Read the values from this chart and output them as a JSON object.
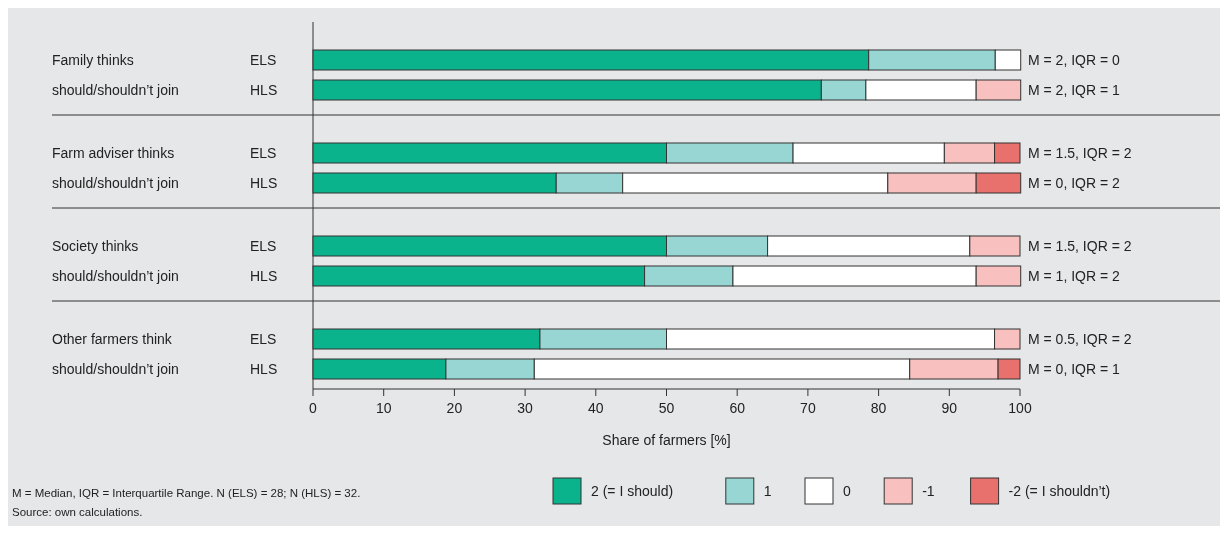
{
  "chart_data": {
    "type": "bar",
    "orientation": "horizontal",
    "stacked": true,
    "xlabel": "Share of farmers [%]",
    "categories": [
      "ELS",
      "HLS",
      "ELS",
      "HLS",
      "ELS",
      "HLS",
      "ELS",
      "HLS"
    ],
    "series": [
      {
        "name": "2 (= I should)",
        "color": "#0bb38d",
        "values": [
          78.6,
          71.9,
          50.0,
          34.4,
          50.0,
          46.9,
          32.1,
          18.8
        ]
      },
      {
        "name": "1",
        "color": "#98d6d3",
        "values": [
          17.9,
          6.3,
          17.9,
          9.4,
          14.3,
          12.5,
          17.9,
          12.5
        ]
      },
      {
        "name": "0",
        "color": "#ffffff",
        "values": [
          3.6,
          15.6,
          21.4,
          37.5,
          28.6,
          34.4,
          46.4,
          53.1
        ]
      },
      {
        "name": "-1",
        "color": "#f8c0bf",
        "values": [
          0,
          6.3,
          7.1,
          12.5,
          7.1,
          6.3,
          3.6,
          12.5
        ]
      },
      {
        "name": "-2 (= I shouldn’t)",
        "color": "#e8706d",
        "values": [
          0,
          0,
          3.6,
          6.3,
          0,
          0,
          0,
          3.1
        ]
      }
    ],
    "xlim": [
      0,
      100
    ],
    "xticks": [
      0,
      10,
      20,
      30,
      40,
      50,
      60,
      70,
      80,
      90,
      100
    ],
    "legend": "bottom",
    "annotations": [
      "Family thinks\nshould/shouldn’t join",
      "Farm adviser thinks\nshould/shouldn’t join",
      "Society thinks\nshould/shouldn’t join",
      "Other farmers think\nshould/shouldn’t join",
      "M = 2, IQR = 0",
      "M = 2, IQR = 1",
      "M = 1.5, IQR = 2",
      "M = 0, IQR = 2",
      "M = 1.5, IQR = 2",
      "M = 1, IQR = 2",
      "M = 0.5, IQR = 2",
      "M = 0, IQR = 1",
      "M = Median, IQR = Interquartile Range. N (ELS) = 28; N (HLS) = 32.",
      "Source: own calculations."
    ]
  }
}
